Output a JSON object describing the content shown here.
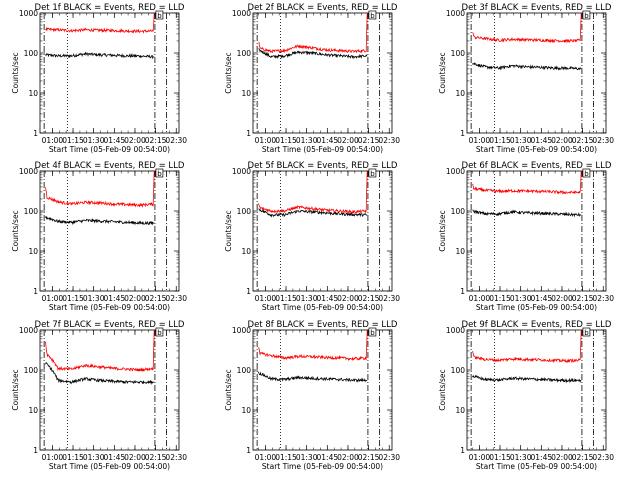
{
  "figure": {
    "background": "#ffffff",
    "events_color": "#000000",
    "lld_color": "#ff0000",
    "frame_color": "#000000"
  },
  "shared": {
    "ylabel": "Counts/sec",
    "xlabel": "Start Time (05-Feb-09 00:54:00)",
    "y_scale": "log",
    "ylim": [
      1,
      1000
    ],
    "y_ticks": [
      "1",
      "10",
      "100",
      "1000"
    ],
    "x_ticks": [
      "01:00",
      "01:15",
      "01:30",
      "01:45",
      "02:00",
      "02:15",
      "02:30"
    ],
    "x_range_minutes": [
      -3,
      98
    ],
    "x_tick_minutes": [
      6,
      21,
      36,
      51,
      66,
      81,
      96
    ],
    "dotted_line_minute": 17,
    "dashdot_line_minutes": [
      0,
      80.5,
      89
    ],
    "saturation_label": "b",
    "series_start_minute": 1,
    "series_end_minute": 80
  },
  "chart_data": [
    {
      "type": "line",
      "title": "Det 1f BLACK = Events, RED = LLD",
      "ylabel": "Counts/sec",
      "xlabel": "Start Time (05-Feb-09 00:54:00)",
      "series": [
        {
          "name": "Events",
          "color": "#000000",
          "x_minutes": [
            1,
            10,
            20,
            30,
            40,
            50,
            60,
            70,
            80
          ],
          "values": [
            90,
            85,
            85,
            95,
            90,
            88,
            85,
            84,
            80
          ]
        },
        {
          "name": "LLD",
          "color": "#ff0000",
          "x_minutes": [
            1,
            2,
            10,
            20,
            30,
            40,
            50,
            60,
            70,
            79.5,
            80
          ],
          "values": [
            400,
            390,
            380,
            360,
            380,
            370,
            365,
            355,
            350,
            355,
            1000
          ]
        }
      ]
    },
    {
      "type": "line",
      "title": "Det 2f BLACK = Events, RED = LLD",
      "ylabel": "Counts/sec",
      "xlabel": "Start Time (05-Feb-09 00:54:00)",
      "series": [
        {
          "name": "Events",
          "color": "#000000",
          "x_minutes": [
            1,
            10,
            20,
            30,
            40,
            50,
            60,
            70,
            80
          ],
          "values": [
            120,
            80,
            85,
            105,
            100,
            90,
            85,
            80,
            85
          ]
        },
        {
          "name": "LLD",
          "color": "#ff0000",
          "x_minutes": [
            1,
            2,
            10,
            20,
            30,
            40,
            50,
            60,
            70,
            79.5,
            80
          ],
          "values": [
            200,
            130,
            110,
            115,
            150,
            135,
            120,
            115,
            110,
            115,
            1000
          ]
        }
      ]
    },
    {
      "type": "line",
      "title": "Det 3f BLACK = Events, RED = LLD",
      "ylabel": "Counts/sec",
      "xlabel": "Start Time (05-Feb-09 00:54:00)",
      "series": [
        {
          "name": "Events",
          "color": "#000000",
          "x_minutes": [
            1,
            10,
            20,
            30,
            40,
            50,
            60,
            70,
            80
          ],
          "values": [
            55,
            45,
            42,
            48,
            45,
            44,
            42,
            42,
            40
          ]
        },
        {
          "name": "LLD",
          "color": "#ff0000",
          "x_minutes": [
            1,
            2,
            10,
            20,
            30,
            40,
            50,
            60,
            70,
            79.5,
            80
          ],
          "values": [
            350,
            250,
            230,
            210,
            220,
            215,
            210,
            205,
            200,
            205,
            1000
          ]
        }
      ]
    },
    {
      "type": "line",
      "title": "Det 4f BLACK = Events, RED = LLD",
      "ylabel": "Counts/sec",
      "xlabel": "Start Time (05-Feb-09 00:54:00)",
      "series": [
        {
          "name": "Events",
          "color": "#000000",
          "x_minutes": [
            1,
            10,
            20,
            30,
            40,
            50,
            60,
            70,
            80
          ],
          "values": [
            70,
            55,
            52,
            58,
            56,
            54,
            52,
            50,
            50
          ]
        },
        {
          "name": "LLD",
          "color": "#ff0000",
          "x_minutes": [
            1,
            2,
            10,
            20,
            30,
            40,
            50,
            60,
            70,
            79.5,
            80
          ],
          "values": [
            400,
            220,
            170,
            150,
            165,
            160,
            150,
            145,
            140,
            150,
            1000
          ]
        }
      ]
    },
    {
      "type": "line",
      "title": "Det 5f BLACK = Events, RED = LLD",
      "ylabel": "Counts/sec",
      "xlabel": "Start Time (05-Feb-09 00:54:00)",
      "series": [
        {
          "name": "Events",
          "color": "#000000",
          "x_minutes": [
            1,
            10,
            20,
            30,
            40,
            50,
            60,
            70,
            80
          ],
          "values": [
            110,
            80,
            80,
            100,
            95,
            90,
            85,
            82,
            80
          ]
        },
        {
          "name": "LLD",
          "color": "#ff0000",
          "x_minutes": [
            1,
            2,
            10,
            20,
            30,
            40,
            50,
            60,
            70,
            79.5,
            80
          ],
          "values": [
            150,
            120,
            100,
            100,
            125,
            115,
            105,
            100,
            95,
            100,
            1000
          ]
        }
      ]
    },
    {
      "type": "line",
      "title": "Det 6f BLACK = Events, RED = LLD",
      "ylabel": "Counts/sec",
      "xlabel": "Start Time (05-Feb-09 00:54:00)",
      "series": [
        {
          "name": "Events",
          "color": "#000000",
          "x_minutes": [
            1,
            10,
            20,
            30,
            40,
            50,
            60,
            70,
            80
          ],
          "values": [
            100,
            85,
            85,
            95,
            90,
            88,
            85,
            82,
            80
          ]
        },
        {
          "name": "LLD",
          "color": "#ff0000",
          "x_minutes": [
            1,
            2,
            10,
            20,
            30,
            40,
            50,
            60,
            70,
            79.5,
            80
          ],
          "values": [
            450,
            360,
            330,
            310,
            320,
            315,
            310,
            300,
            290,
            295,
            1000
          ]
        }
      ]
    },
    {
      "type": "line",
      "title": "Det 7f BLACK = Events, RED = LLD",
      "ylabel": "Counts/sec",
      "xlabel": "Start Time (05-Feb-09 00:54:00)",
      "series": [
        {
          "name": "Events",
          "color": "#000000",
          "x_minutes": [
            1,
            10,
            20,
            30,
            40,
            50,
            60,
            70,
            80
          ],
          "values": [
            150,
            55,
            50,
            60,
            55,
            52,
            50,
            50,
            50
          ]
        },
        {
          "name": "LLD",
          "color": "#ff0000",
          "x_minutes": [
            1,
            2,
            10,
            20,
            30,
            40,
            50,
            60,
            70,
            79.5,
            80
          ],
          "values": [
            500,
            250,
            110,
            105,
            130,
            120,
            110,
            105,
            100,
            110,
            1000
          ]
        }
      ]
    },
    {
      "type": "line",
      "title": "Det 8f BLACK = Events, RED = LLD",
      "ylabel": "Counts/sec",
      "xlabel": "Start Time (05-Feb-09 00:54:00)",
      "series": [
        {
          "name": "Events",
          "color": "#000000",
          "x_minutes": [
            1,
            10,
            20,
            30,
            40,
            50,
            60,
            70,
            80
          ],
          "values": [
            85,
            60,
            58,
            65,
            62,
            60,
            58,
            56,
            55
          ]
        },
        {
          "name": "LLD",
          "color": "#ff0000",
          "x_minutes": [
            1,
            2,
            10,
            20,
            30,
            40,
            50,
            60,
            70,
            79.5,
            80
          ],
          "values": [
            400,
            260,
            230,
            200,
            220,
            215,
            205,
            200,
            190,
            200,
            1000
          ]
        }
      ]
    },
    {
      "type": "line",
      "title": "Det 9f BLACK = Events, RED = LLD",
      "ylabel": "Counts/sec",
      "xlabel": "Start Time (05-Feb-09 00:54:00)",
      "series": [
        {
          "name": "Events",
          "color": "#000000",
          "x_minutes": [
            1,
            10,
            20,
            30,
            40,
            50,
            60,
            70,
            80
          ],
          "values": [
            70,
            58,
            56,
            62,
            60,
            58,
            56,
            55,
            55
          ]
        },
        {
          "name": "LLD",
          "color": "#ff0000",
          "x_minutes": [
            1,
            2,
            10,
            20,
            30,
            40,
            50,
            60,
            70,
            79.5,
            80
          ],
          "values": [
            300,
            210,
            185,
            175,
            190,
            185,
            180,
            175,
            170,
            175,
            1000
          ]
        }
      ]
    }
  ]
}
